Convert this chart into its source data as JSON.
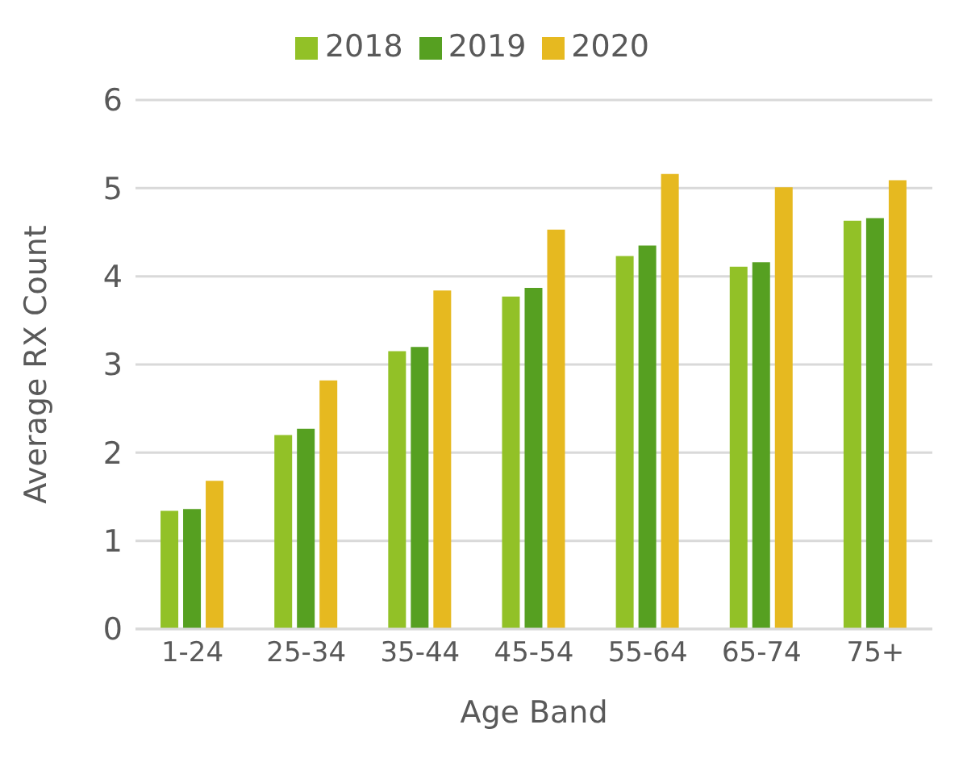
{
  "chart_data": {
    "type": "bar",
    "xlabel": "Age Band",
    "ylabel": "Average RX Count",
    "categories": [
      "1-24",
      "25-34",
      "35-44",
      "45-54",
      "55-64",
      "65-74",
      "75+"
    ],
    "series": [
      {
        "name": "2018",
        "color": "#92c127",
        "values": [
          1.34,
          2.2,
          3.15,
          3.77,
          4.23,
          4.11,
          4.63
        ]
      },
      {
        "name": "2019",
        "color": "#56a021",
        "values": [
          1.36,
          2.27,
          3.2,
          3.87,
          4.35,
          4.16,
          4.66
        ]
      },
      {
        "name": "2020",
        "color": "#e6b920",
        "values": [
          1.68,
          2.82,
          3.84,
          4.53,
          5.16,
          5.01,
          5.09
        ]
      }
    ],
    "ylim": [
      0,
      6
    ],
    "yticks": [
      0,
      1,
      2,
      3,
      4,
      5,
      6
    ],
    "grid": "y",
    "legend": "top"
  }
}
